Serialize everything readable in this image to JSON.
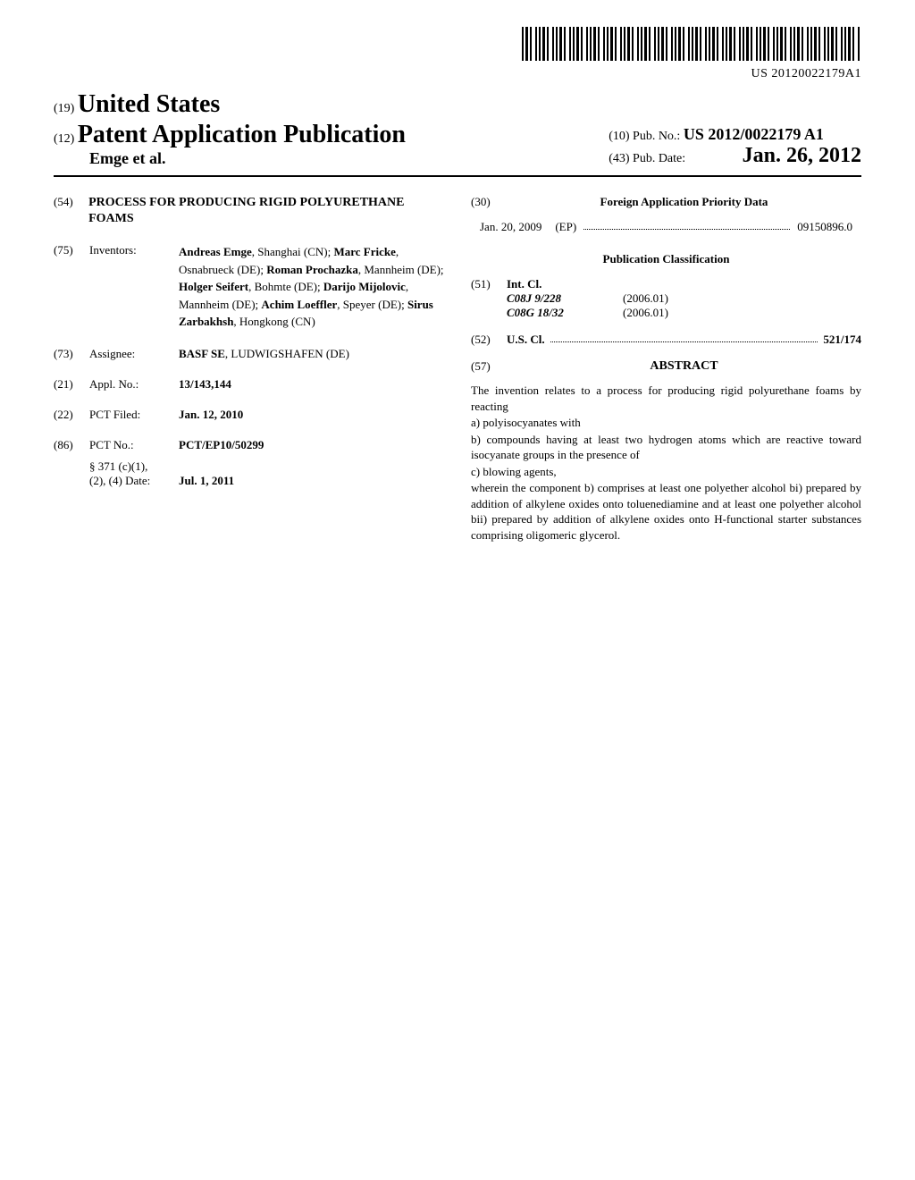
{
  "barcode_text": "US 20120022179A1",
  "header": {
    "code_19": "(19)",
    "country": "United States",
    "code_12": "(12)",
    "doc_type": "Patent Application Publication",
    "authors": "Emge et al.",
    "code_10": "(10)",
    "pub_no_label": "Pub. No.:",
    "pub_no": "US 2012/0022179 A1",
    "code_43": "(43)",
    "pub_date_label": "Pub. Date:",
    "pub_date": "Jan. 26, 2012"
  },
  "biblio": {
    "code_54": "(54)",
    "title": "PROCESS FOR PRODUCING RIGID POLYURETHANE FOAMS",
    "code_75": "(75)",
    "inventors_label": "Inventors:",
    "inventors_html": "<b>Andreas Emge</b>, Shanghai (CN); <b>Marc Fricke</b>, Osnabrueck (DE); <b>Roman Prochazka</b>, Mannheim (DE); <b>Holger Seifert</b>, Bohmte (DE); <b>Darijo Mijolovic</b>, Mannheim (DE); <b>Achim Loeffler</b>, Speyer (DE); <b>Sirus Zarbakhsh</b>, Hongkong (CN)",
    "code_73": "(73)",
    "assignee_label": "Assignee:",
    "assignee": "<b>BASF SE</b>, LUDWIGSHAFEN (DE)",
    "code_21": "(21)",
    "appl_no_label": "Appl. No.:",
    "appl_no": "13/143,144",
    "code_22": "(22)",
    "pct_filed_label": "PCT Filed:",
    "pct_filed": "Jan. 12, 2010",
    "code_86": "(86)",
    "pct_no_label": "PCT No.:",
    "pct_no": "PCT/EP10/50299",
    "s371_label": "§ 371 (c)(1),",
    "s371_date_label": "(2), (4) Date:",
    "s371_date": "Jul. 1, 2011"
  },
  "right": {
    "code_30": "(30)",
    "foreign_header": "Foreign Application Priority Data",
    "priority_date": "Jan. 20, 2009",
    "priority_country": "(EP)",
    "priority_no": "09150896.0",
    "pub_class_header": "Publication Classification",
    "code_51": "(51)",
    "intcl_label": "Int. Cl.",
    "intcl": [
      {
        "code": "C08J 9/228",
        "date": "(2006.01)"
      },
      {
        "code": "C08G 18/32",
        "date": "(2006.01)"
      }
    ],
    "code_52": "(52)",
    "uscl_label": "U.S. Cl.",
    "uscl_value": "521/174",
    "code_57": "(57)",
    "abstract_header": "ABSTRACT",
    "abstract_p1": "The invention relates to a process for producing rigid polyurethane foams by reacting",
    "abstract_a": "a) polyisocyanates with",
    "abstract_b": "b) compounds having at least two hydrogen atoms which are reactive toward isocyanate groups in the presence of",
    "abstract_c": "c) blowing agents,",
    "abstract_p2": "wherein the component b) comprises at least one polyether alcohol bi) prepared by addition of alkylene oxides onto toluenediamine and at least one polyether alcohol bii) prepared by addition of alkylene oxides onto H-functional starter substances comprising oligomeric glycerol."
  }
}
